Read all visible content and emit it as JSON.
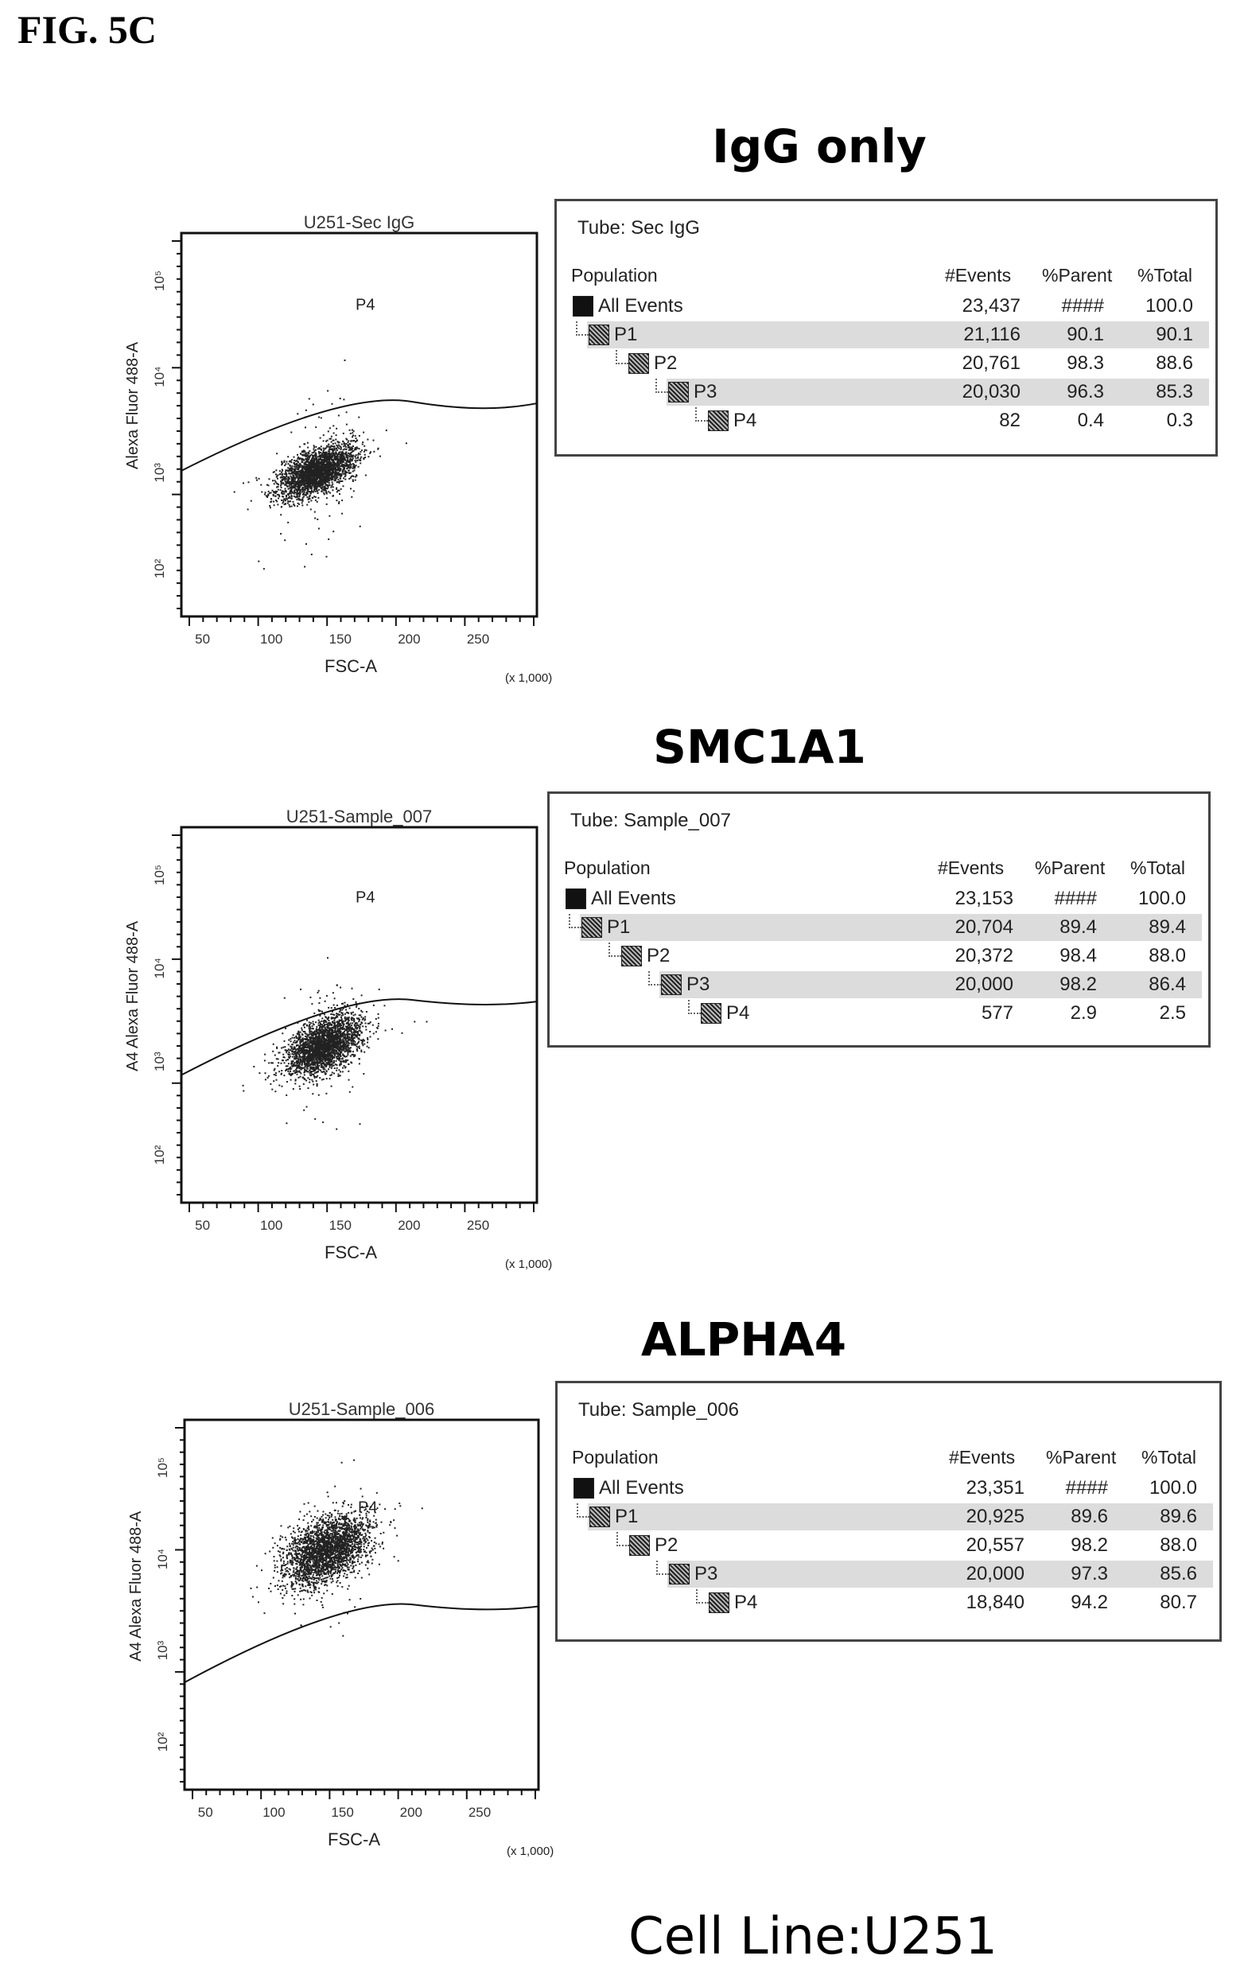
{
  "figure_label": "FIG. 5C",
  "cell_line": "Cell Line:U251",
  "panels": [
    {
      "title": "IgG only",
      "plot": {
        "title": "U251-Sec IgG",
        "xlabel": "FSC-A",
        "ylabel": "Alexa Fluor 488-A",
        "x_multiplier": "(x 1,000)",
        "x_ticks": [
          "50",
          "100",
          "150",
          "200",
          "250"
        ],
        "y_ticks": [
          "10²",
          "10³",
          "10⁴",
          "10⁵"
        ],
        "gate_label": "P4"
      },
      "table": {
        "tube": "Tube:  Sec IgG",
        "headers": [
          "Population",
          "#Events",
          "%Parent",
          "%Total"
        ],
        "rows": [
          {
            "name": "All Events",
            "events": "23,437",
            "parent": "####",
            "total": "100.0"
          },
          {
            "name": "P1",
            "events": "21,116",
            "parent": "90.1",
            "total": "90.1"
          },
          {
            "name": "P2",
            "events": "20,761",
            "parent": "98.3",
            "total": "88.6"
          },
          {
            "name": "P3",
            "events": "20,030",
            "parent": "96.3",
            "total": "85.3"
          },
          {
            "name": "P4",
            "events": "82",
            "parent": "0.4",
            "total": "0.3"
          }
        ]
      }
    },
    {
      "title": "SMC1A1",
      "plot": {
        "title": "U251-Sample_007",
        "xlabel": "FSC-A",
        "ylabel": "A4 Alexa Fluor 488-A",
        "x_multiplier": "(x 1,000)",
        "x_ticks": [
          "50",
          "100",
          "150",
          "200",
          "250"
        ],
        "y_ticks": [
          "10²",
          "10³",
          "10⁴",
          "10⁵"
        ],
        "gate_label": "P4"
      },
      "table": {
        "tube": "Tube:  Sample_007",
        "headers": [
          "Population",
          "#Events",
          "%Parent",
          "%Total"
        ],
        "rows": [
          {
            "name": "All Events",
            "events": "23,153",
            "parent": "####",
            "total": "100.0"
          },
          {
            "name": "P1",
            "events": "20,704",
            "parent": "89.4",
            "total": "89.4"
          },
          {
            "name": "P2",
            "events": "20,372",
            "parent": "98.4",
            "total": "88.0"
          },
          {
            "name": "P3",
            "events": "20,000",
            "parent": "98.2",
            "total": "86.4"
          },
          {
            "name": "P4",
            "events": "577",
            "parent": "2.9",
            "total": "2.5"
          }
        ]
      }
    },
    {
      "title": "ALPHA4",
      "plot": {
        "title": "U251-Sample_006",
        "xlabel": "FSC-A",
        "ylabel": "A4 Alexa Fluor 488-A",
        "x_multiplier": "(x 1,000)",
        "x_ticks": [
          "50",
          "100",
          "150",
          "200",
          "250"
        ],
        "y_ticks": [
          "10²",
          "10³",
          "10⁴",
          "10⁵"
        ],
        "gate_label": "P4"
      },
      "table": {
        "tube": "Tube:  Sample_006",
        "headers": [
          "Population",
          "#Events",
          "%Parent",
          "%Total"
        ],
        "rows": [
          {
            "name": "All Events",
            "events": "23,351",
            "parent": "####",
            "total": "100.0"
          },
          {
            "name": "P1",
            "events": "20,925",
            "parent": "89.6",
            "total": "89.6"
          },
          {
            "name": "P2",
            "events": "20,557",
            "parent": "98.2",
            "total": "88.0"
          },
          {
            "name": "P3",
            "events": "20,000",
            "parent": "97.3",
            "total": "85.6"
          },
          {
            "name": "P4",
            "events": "18,840",
            "parent": "94.2",
            "total": "80.7"
          }
        ]
      }
    }
  ]
}
